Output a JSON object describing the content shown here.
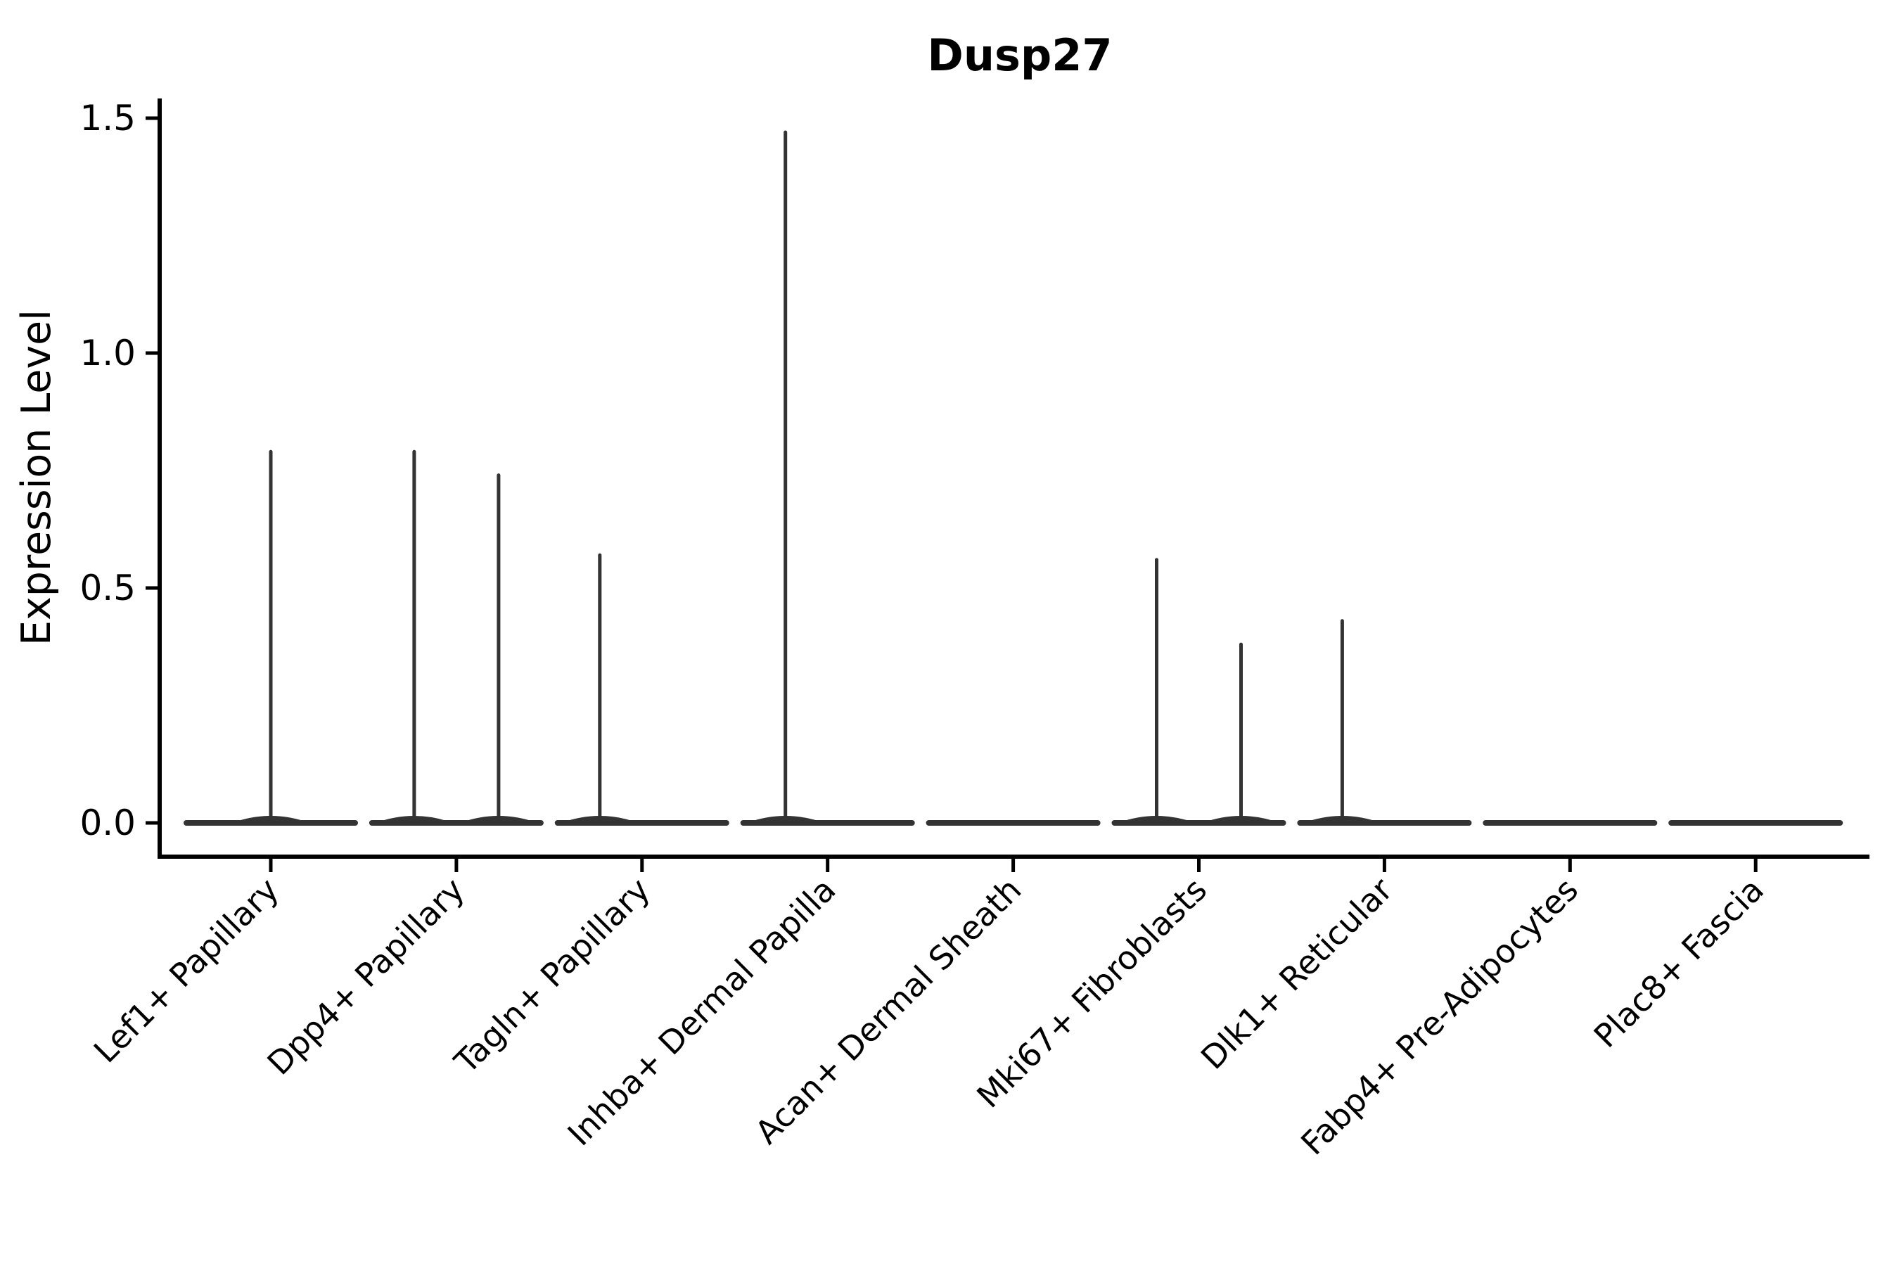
{
  "figure": {
    "background": "#ffffff"
  },
  "chart_data": {
    "type": "violin",
    "title": "Dusp27",
    "ylabel": "Expression Level",
    "xlabel": "",
    "yticks": [
      0.0,
      0.5,
      1.0,
      1.5
    ],
    "ytick_labels": [
      "0.0",
      "0.5",
      "1.0",
      "1.5"
    ],
    "ylim": [
      -0.07,
      1.57
    ],
    "grid": false,
    "legend": "none",
    "categories": [
      "Lef1+ Papillary",
      "Dpp4+ Papillary",
      "Tagln+ Papillary",
      "Inhba+ Dermal Papilla",
      "Acan+ Dermal Sheath",
      "Mki67+ Fibroblasts",
      "Dlk1+ Reticular",
      "Fabp4+ Pre-Adipocytes",
      "Plac8+ Fascia"
    ],
    "violins": [
      {
        "category": "Lef1+ Papillary",
        "zero_mass": true,
        "spikes": [
          {
            "position": "center",
            "max": 0.79
          }
        ]
      },
      {
        "category": "Dpp4+ Papillary",
        "zero_mass": true,
        "spikes": [
          {
            "position": "left",
            "max": 0.79
          },
          {
            "position": "right",
            "max": 0.74
          }
        ]
      },
      {
        "category": "Tagln+ Papillary",
        "zero_mass": true,
        "spikes": [
          {
            "position": "left",
            "max": 0.57
          }
        ]
      },
      {
        "category": "Inhba+ Dermal Papilla",
        "zero_mass": true,
        "spikes": [
          {
            "position": "left",
            "max": 1.47
          }
        ]
      },
      {
        "category": "Acan+ Dermal Sheath",
        "zero_mass": true,
        "spikes": []
      },
      {
        "category": "Mki67+ Fibroblasts",
        "zero_mass": true,
        "spikes": [
          {
            "position": "left",
            "max": 0.56
          },
          {
            "position": "right",
            "max": 0.38
          }
        ]
      },
      {
        "category": "Dlk1+ Reticular",
        "zero_mass": true,
        "spikes": [
          {
            "position": "left",
            "max": 0.43
          }
        ]
      },
      {
        "category": "Fabp4+ Pre-Adipocytes",
        "zero_mass": true,
        "spikes": []
      },
      {
        "category": "Plac8+ Fascia",
        "zero_mass": true,
        "spikes": []
      }
    ],
    "colors": {
      "violin_stroke": "#333333",
      "axis": "#000000",
      "text": "#000000"
    }
  }
}
